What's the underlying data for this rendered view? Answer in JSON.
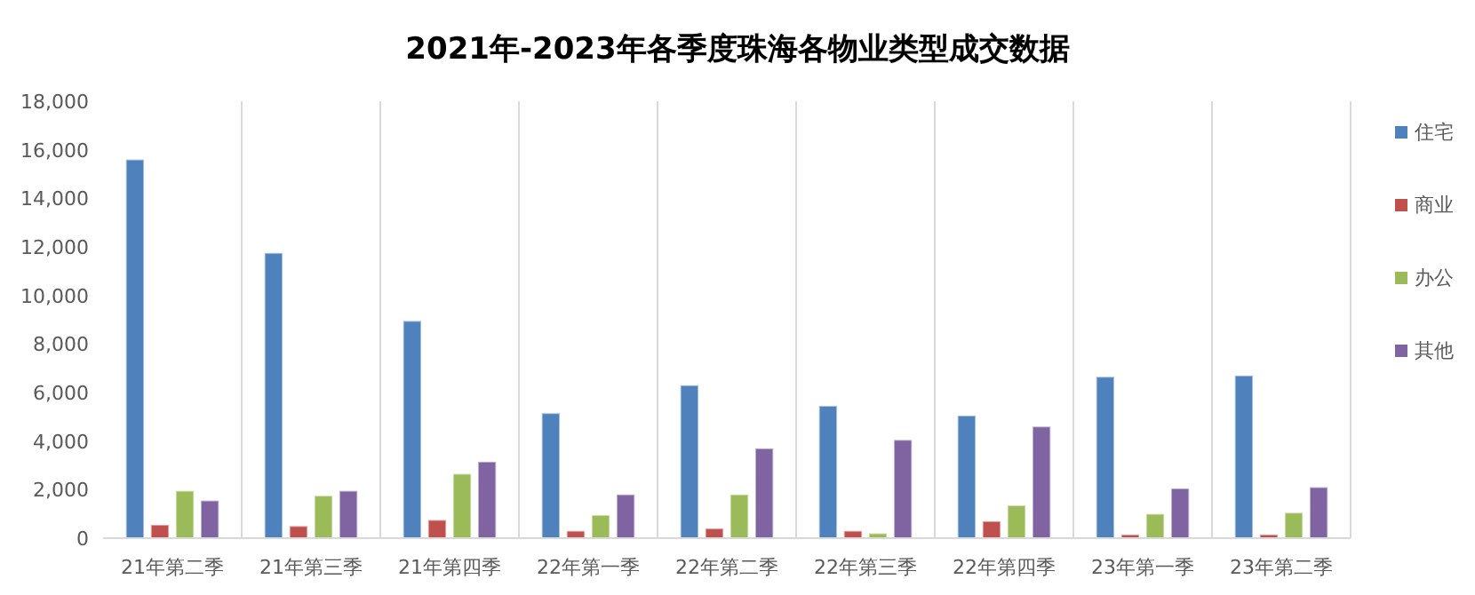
{
  "chart_data": {
    "type": "bar",
    "title": "2021年-2023年各季度珠海各物业类型成交数据",
    "categories": [
      "21年第二季",
      "21年第三季",
      "21年第四季",
      "22年第一季",
      "22年第二季",
      "22年第三季",
      "22年第四季",
      "23年第一季",
      "23年第二季"
    ],
    "series": [
      {
        "name": "住宅",
        "color": "#4f81bd",
        "values": [
          15600,
          11750,
          8950,
          5150,
          6300,
          5450,
          5050,
          6650,
          6700
        ]
      },
      {
        "name": "商业",
        "color": "#c0504d",
        "values": [
          550,
          500,
          750,
          300,
          400,
          300,
          700,
          150,
          150
        ]
      },
      {
        "name": "办公",
        "color": "#9bbb59",
        "values": [
          1950,
          1750,
          2650,
          950,
          1800,
          200,
          1350,
          1000,
          1050
        ]
      },
      {
        "name": "其他",
        "color": "#8064a2",
        "values": [
          1550,
          1950,
          3150,
          1800,
          3700,
          4050,
          4600,
          2050,
          2100
        ]
      }
    ],
    "ylim": [
      0,
      18000
    ],
    "yticks": [
      {
        "value": 0,
        "label": "0"
      },
      {
        "value": 2000,
        "label": "2,000"
      },
      {
        "value": 4000,
        "label": "4,000"
      },
      {
        "value": 6000,
        "label": "6,000"
      },
      {
        "value": 8000,
        "label": "8,000"
      },
      {
        "value": 10000,
        "label": "10,000"
      },
      {
        "value": 12000,
        "label": "12,000"
      },
      {
        "value": 14000,
        "label": "14,000"
      },
      {
        "value": 16000,
        "label": "16,000"
      },
      {
        "value": 18000,
        "label": "18,000"
      }
    ],
    "grid": "x",
    "legend": "right"
  }
}
